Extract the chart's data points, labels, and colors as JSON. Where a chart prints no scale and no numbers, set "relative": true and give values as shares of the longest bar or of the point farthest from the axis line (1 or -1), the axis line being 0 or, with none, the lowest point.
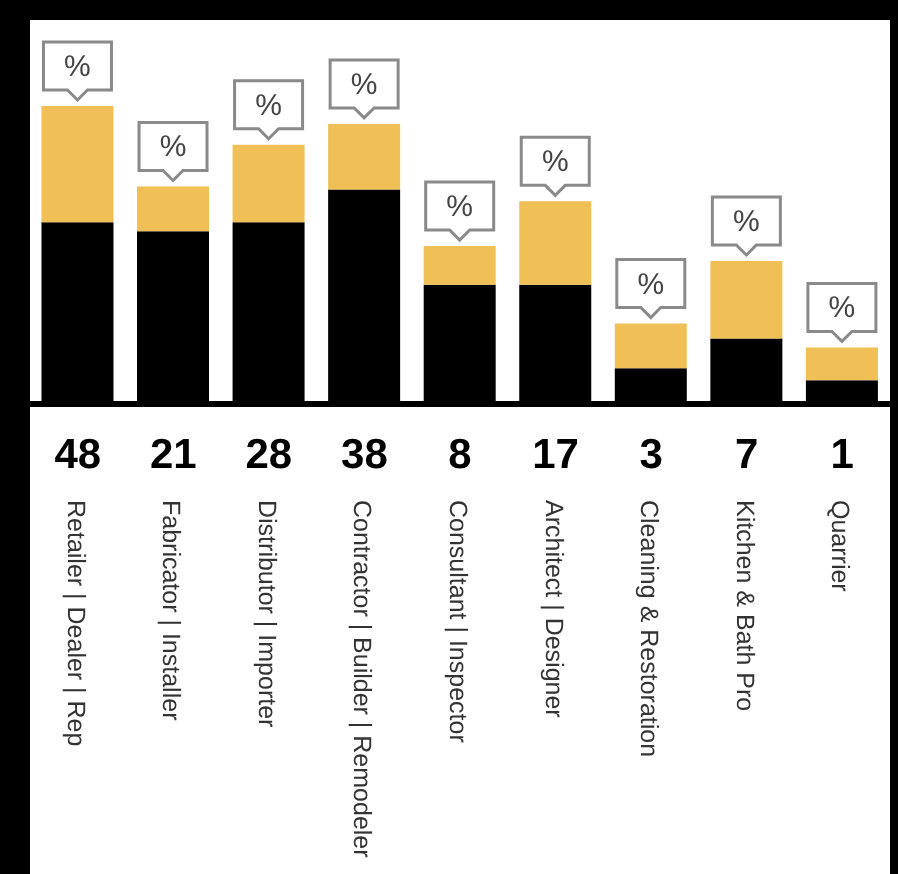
{
  "chart_data": {
    "type": "bar",
    "stacked": true,
    "relative": true,
    "categories": [
      "Retailer | Dealer | Rep",
      "Fabricator | Installer",
      "Distributor | Importer",
      "Contractor | Builder | Remodeler",
      "Consultant | Inspector",
      "Architect | Designer",
      "Cleaning & Restoration",
      "Kitchen & Bath Pro",
      "Quarrier"
    ],
    "series": [
      {
        "color": "#000000",
        "values": [
          0.61,
          0.58,
          0.61,
          0.72,
          0.4,
          0.4,
          0.12,
          0.22,
          0.08
        ]
      },
      {
        "color": "#f0bf55",
        "values": [
          0.39,
          0.15,
          0.26,
          0.22,
          0.13,
          0.28,
          0.15,
          0.26,
          0.11
        ]
      }
    ],
    "annotations": [
      "48",
      "21",
      "28",
      "38",
      "8",
      "17",
      "3",
      "7",
      "1",
      "%",
      "%",
      "%",
      "%",
      "%",
      "%",
      "%",
      "%",
      "%"
    ]
  }
}
